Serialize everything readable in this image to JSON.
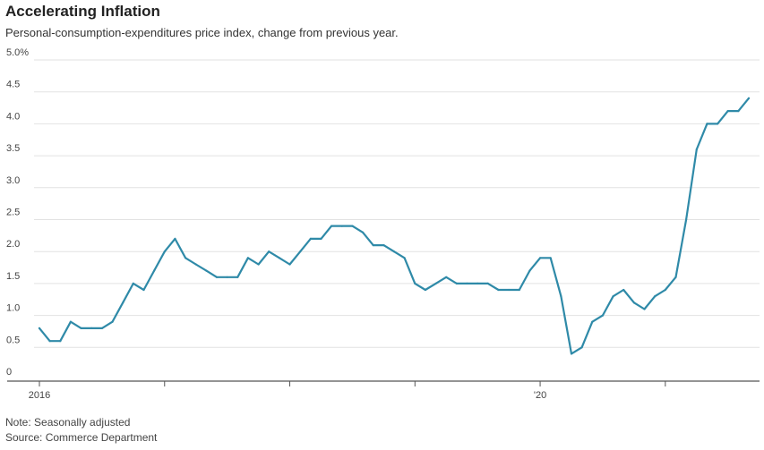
{
  "header": {
    "title": "Accelerating Inflation",
    "subtitle": "Personal-consumption-expenditures price index, change from previous year."
  },
  "footer": {
    "note": "Note: Seasonally adjusted",
    "source": "Source: Commerce Department"
  },
  "colors": {
    "line": "#2f8aa8",
    "grid": "#e2e2e2",
    "axis": "#555555"
  },
  "chart_data": {
    "type": "line",
    "title": "Accelerating Inflation",
    "subtitle": "Personal-consumption-expenditures price index, change from previous year.",
    "xlabel": "",
    "ylabel": "",
    "ylim": [
      0,
      5.0
    ],
    "xlim": [
      "2016-01",
      "2021-09"
    ],
    "grid": true,
    "y_ticks": [
      {
        "value": 0,
        "label": "0"
      },
      {
        "value": 0.5,
        "label": "0.5"
      },
      {
        "value": 1.0,
        "label": "1.0"
      },
      {
        "value": 1.5,
        "label": "1.5"
      },
      {
        "value": 2.0,
        "label": "2.0"
      },
      {
        "value": 2.5,
        "label": "2.5"
      },
      {
        "value": 3.0,
        "label": "3.0"
      },
      {
        "value": 3.5,
        "label": "3.5"
      },
      {
        "value": 4.0,
        "label": "4.0"
      },
      {
        "value": 4.5,
        "label": "4.5"
      },
      {
        "value": 5.0,
        "label": "5.0%"
      }
    ],
    "x_ticks": [
      {
        "value": "2016-01",
        "label": "2016"
      },
      {
        "value": "2017-01",
        "label": ""
      },
      {
        "value": "2018-01",
        "label": ""
      },
      {
        "value": "2019-01",
        "label": ""
      },
      {
        "value": "2020-01",
        "label": "'20"
      },
      {
        "value": "2021-01",
        "label": ""
      }
    ],
    "x": [
      "2016-01",
      "2016-02",
      "2016-03",
      "2016-04",
      "2016-05",
      "2016-06",
      "2016-07",
      "2016-08",
      "2016-09",
      "2016-10",
      "2016-11",
      "2016-12",
      "2017-01",
      "2017-02",
      "2017-03",
      "2017-04",
      "2017-05",
      "2017-06",
      "2017-07",
      "2017-08",
      "2017-09",
      "2017-10",
      "2017-11",
      "2017-12",
      "2018-01",
      "2018-02",
      "2018-03",
      "2018-04",
      "2018-05",
      "2018-06",
      "2018-07",
      "2018-08",
      "2018-09",
      "2018-10",
      "2018-11",
      "2018-12",
      "2019-01",
      "2019-02",
      "2019-03",
      "2019-04",
      "2019-05",
      "2019-06",
      "2019-07",
      "2019-08",
      "2019-09",
      "2019-10",
      "2019-11",
      "2019-12",
      "2020-01",
      "2020-02",
      "2020-03",
      "2020-04",
      "2020-05",
      "2020-06",
      "2020-07",
      "2020-08",
      "2020-09",
      "2020-10",
      "2020-11",
      "2020-12",
      "2021-01",
      "2021-02",
      "2021-03",
      "2021-04",
      "2021-05",
      "2021-06",
      "2021-07",
      "2021-08",
      "2021-09"
    ],
    "values": [
      0.8,
      0.6,
      0.6,
      0.9,
      0.8,
      0.8,
      0.8,
      0.9,
      1.2,
      1.5,
      1.4,
      1.7,
      2.0,
      2.2,
      1.9,
      1.8,
      1.7,
      1.6,
      1.6,
      1.6,
      1.9,
      1.8,
      2.0,
      1.9,
      1.8,
      2.0,
      2.2,
      2.2,
      2.4,
      2.4,
      2.4,
      2.3,
      2.1,
      2.1,
      2.0,
      1.9,
      1.5,
      1.4,
      1.5,
      1.6,
      1.5,
      1.5,
      1.5,
      1.5,
      1.4,
      1.4,
      1.4,
      1.7,
      1.9,
      1.9,
      1.3,
      0.4,
      0.5,
      0.9,
      1.0,
      1.3,
      1.4,
      1.2,
      1.1,
      1.3,
      1.4,
      1.6,
      2.5,
      3.6,
      4.0,
      4.0,
      4.2,
      4.2,
      4.4
    ]
  }
}
